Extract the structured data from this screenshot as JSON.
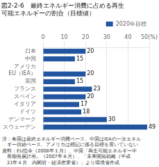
{
  "chart_data": {
    "type": "bar",
    "orientation": "horizontal",
    "title": [
      "図2-2-6　最終エネルギー消費に占める再生",
      "可能エネルギーの割合（目標値）"
    ],
    "categories": [
      "日本",
      "中国",
      "アメリカ",
      "EU（IEA）",
      "英国",
      "フランス",
      "スペイン",
      "イタリア",
      "ドイツ",
      "デンマーク",
      "スウェーデン"
    ],
    "series": [
      {
        "name": "2020年目標",
        "color": "#2255a0",
        "values": [
          20,
          15,
          0,
          20,
          15,
          23,
          20,
          17,
          18,
          30,
          49
        ],
        "value_labels": [
          "20",
          "15",
          null,
          "20",
          "15",
          "23",
          "20",
          "17",
          "18",
          "30",
          "49"
        ]
      }
    ],
    "xlim": [
      0,
      50
    ],
    "xticks": [
      0,
      10,
      20,
      30,
      40,
      {
        "value": 50,
        "label": "50(%)"
      }
    ],
    "grid": true,
    "legend": "upper right",
    "data_labels": true,
    "annotations": [
      "注：各国は最終エネルギー消費ベース、中国はIEAの一次エネル",
      "　ギー供給ベース、アメリカは標記に係る目標を置いていない",
      "資料：EU指令（2008年１月）、中国「再生可能エネルギー中",
      "　長期発展計画」（2007年８月）、「未来開拓戦略（平成",
      "　21年４月　内閣府・経済産業省）」より環境省作成"
    ]
  }
}
